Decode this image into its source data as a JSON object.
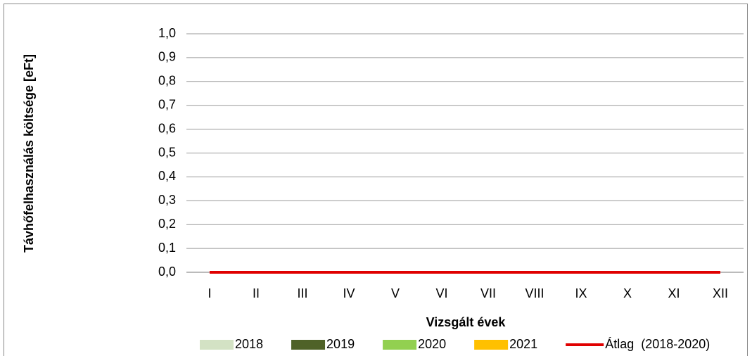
{
  "chart_data": {
    "type": "bar",
    "y_label": "Távhőfelhasználás költsége [eFt]",
    "x_label": "Vizsgált évek",
    "categories": [
      "I",
      "II",
      "III",
      "IV",
      "V",
      "VI",
      "VII",
      "VIII",
      "IX",
      "X",
      "XI",
      "XII"
    ],
    "series": [
      {
        "name": "2018",
        "color": "#d3e2c4",
        "values": [
          0,
          0,
          0,
          0,
          0,
          0,
          0,
          0,
          0,
          0,
          0,
          0
        ]
      },
      {
        "name": "2019",
        "color": "#4f6228",
        "values": [
          0,
          0,
          0,
          0,
          0,
          0,
          0,
          0,
          0,
          0,
          0,
          0
        ]
      },
      {
        "name": "2020",
        "color": "#92d050",
        "values": [
          0,
          0,
          0,
          0,
          0,
          0,
          0,
          0,
          0,
          0,
          0,
          0
        ]
      },
      {
        "name": "2021",
        "color": "#ffc000",
        "values": [
          0,
          0,
          0,
          0,
          0,
          0,
          0,
          0,
          0,
          0,
          0,
          0
        ]
      },
      {
        "name": "Átlag  (2018-2020)",
        "color": "#e00000",
        "type": "line",
        "values": [
          0,
          0,
          0,
          0,
          0,
          0,
          0,
          0,
          0,
          0,
          0,
          0
        ]
      }
    ],
    "ylim": [
      0,
      1
    ],
    "yticks": [
      {
        "value": 0,
        "label": "0,0"
      },
      {
        "value": 0.1,
        "label": "0,1"
      },
      {
        "value": 0.2,
        "label": "0,2"
      },
      {
        "value": 0.3,
        "label": "0,3"
      },
      {
        "value": 0.4,
        "label": "0,4"
      },
      {
        "value": 0.5,
        "label": "0,5"
      },
      {
        "value": 0.6,
        "label": "0,6"
      },
      {
        "value": 0.7,
        "label": "0,7"
      },
      {
        "value": 0.8,
        "label": "0,8"
      },
      {
        "value": 0.9,
        "label": "0,9"
      },
      {
        "value": 1,
        "label": "1,0"
      }
    ],
    "grid": true,
    "legend": "bottom"
  }
}
